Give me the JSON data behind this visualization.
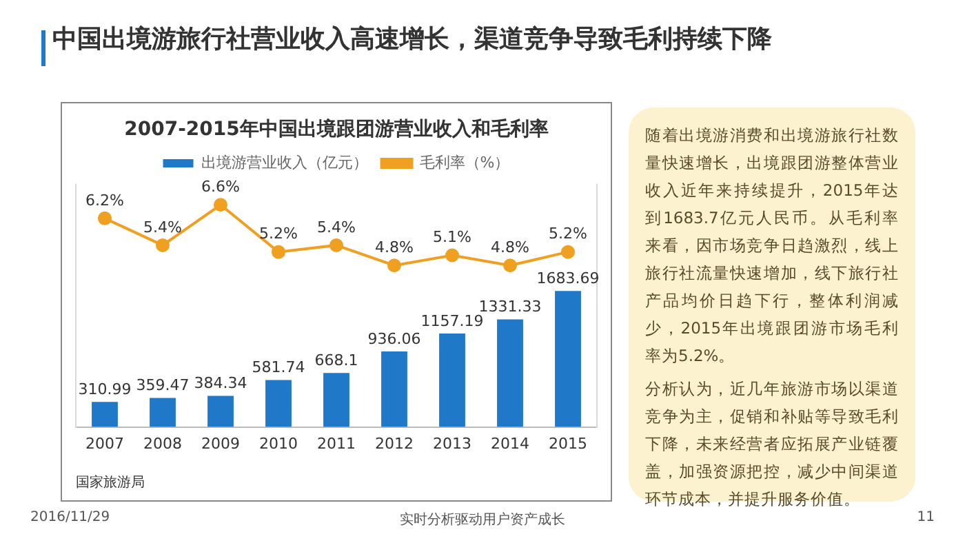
{
  "chart_data": {
    "type": "bar",
    "title": "中国出境游旅行社营业收入高速增长，渠道竞争导致毛利持续下降",
    "subtitle": "2007-2015年中国出境跟团游营业收入和毛利率",
    "categories": [
      "2007",
      "2008",
      "2009",
      "2010",
      "2011",
      "2012",
      "2013",
      "2014",
      "2015"
    ],
    "series": [
      {
        "name": "出境游营业收入（亿元）",
        "color": "#1f78c8",
        "values": [
          310.99,
          359.47,
          384.34,
          581.74,
          668.1,
          936.06,
          1157.19,
          1331.33,
          1683.69
        ],
        "value_labels": [
          "310.99",
          "359.47",
          "384.34",
          "581.74",
          "668.1",
          "936.06",
          "1157.19",
          "1331.33",
          "1683.69"
        ]
      },
      {
        "name": "毛利率（%）",
        "type": "line",
        "axis": "y2",
        "color": "#f0a020",
        "values": [
          6.2,
          5.4,
          6.6,
          5.2,
          5.4,
          4.8,
          5.1,
          4.8,
          5.2
        ],
        "value_labels": [
          "6.2%",
          "5.4%",
          "6.6%",
          "5.2%",
          "5.4%",
          "4.8%",
          "5.1%",
          "4.8%",
          "5.2%"
        ]
      }
    ],
    "ylim": [
      0,
      3000
    ],
    "y2lim": [
      0,
      7.2
    ],
    "legend": "top",
    "grid": false,
    "marker": "circle",
    "tick_labels": "x",
    "annotations": [
      "随着出境游消费和出境游旅行社数量快速增长，出境跟团游整体营业收入近年来持续提升，2015年达到1683.7亿元人民币。从毛利率来看，因市场竞争日趋激烈，线上旅行社流量快速增加，线下旅行社产品均价日趋下行，整体利润减少，2015年出境跟团游市场毛利率为5.2%。",
      "分析认为，近几年旅游市场以渠道竞争为主，促销和补贴等导致毛利下降，未来经营者应拓展产业链覆盖，加强资源把控，减少中间渠道环节成本，并提升服务价值。",
      "国家旅游局",
      "2016/11/29",
      "实时分析驱动用户资产成长",
      "11"
    ]
  }
}
